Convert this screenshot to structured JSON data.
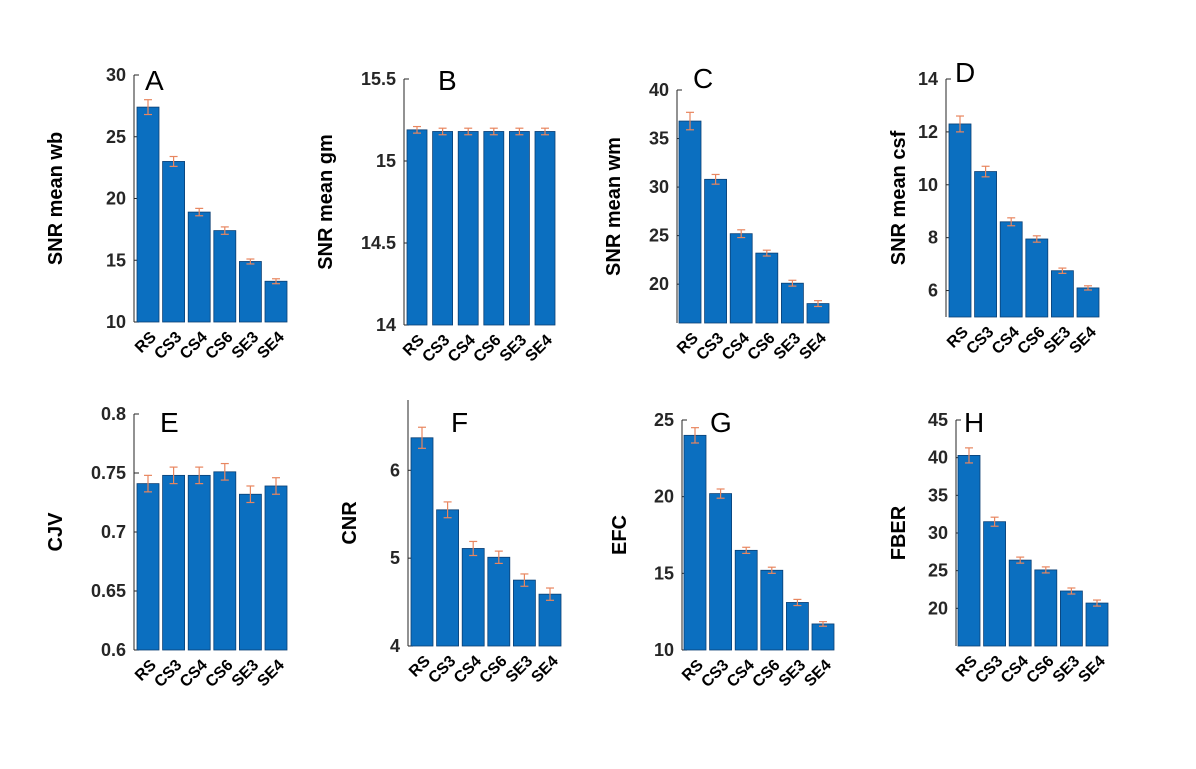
{
  "colors": {
    "bar": "#0b6fc0",
    "bar_edge": "#0a3f74",
    "error": "#e8865f",
    "axis": "#262626"
  },
  "chart_data": [
    {
      "type": "bar",
      "panel_label": "A",
      "ylabel": "SNR mean wb",
      "ylim": [
        10,
        30
      ],
      "yticks": [
        "10",
        "15",
        "20",
        "25",
        "30"
      ],
      "categories": [
        "RS",
        "CS3",
        "CS4",
        "CS6",
        "SE3",
        "SE4"
      ],
      "values": [
        27.4,
        23.0,
        18.9,
        17.4,
        14.9,
        13.3
      ],
      "errors": [
        0.6,
        0.4,
        0.3,
        0.3,
        0.2,
        0.2
      ]
    },
    {
      "type": "bar",
      "panel_label": "B",
      "ylabel": "SNR mean gm",
      "ylim": [
        14,
        15.5
      ],
      "yticks": [
        "14",
        "14.5",
        "15",
        "15.5"
      ],
      "categories": [
        "RS",
        "CS3",
        "CS4",
        "CS6",
        "SE3",
        "SE4"
      ],
      "values": [
        15.19,
        15.18,
        15.18,
        15.18,
        15.18,
        15.18
      ],
      "errors": [
        0.02,
        0.02,
        0.02,
        0.02,
        0.02,
        0.02
      ]
    },
    {
      "type": "bar",
      "panel_label": "C",
      "ylabel": "SNR mean wm",
      "ylim": [
        16,
        40
      ],
      "yticks": [
        "20",
        "25",
        "30",
        "35",
        "40"
      ],
      "categories": [
        "RS",
        "CS3",
        "CS4",
        "CS6",
        "SE3",
        "SE4"
      ],
      "values": [
        36.8,
        30.8,
        25.2,
        23.2,
        20.1,
        18.0
      ],
      "errors": [
        0.9,
        0.5,
        0.4,
        0.3,
        0.3,
        0.3
      ]
    },
    {
      "type": "bar",
      "panel_label": "D",
      "ylabel": "SNR mean csf",
      "ylim": [
        5,
        14
      ],
      "yticks": [
        "6",
        "8",
        "10",
        "12",
        "14"
      ],
      "categories": [
        "RS",
        "CS3",
        "CS4",
        "CS6",
        "SE3",
        "SE4"
      ],
      "values": [
        12.3,
        10.5,
        8.6,
        7.95,
        6.75,
        6.1
      ],
      "errors": [
        0.3,
        0.2,
        0.15,
        0.12,
        0.1,
        0.08
      ]
    },
    {
      "type": "bar",
      "panel_label": "E",
      "ylabel": "CJV",
      "ylim": [
        0.6,
        0.8
      ],
      "yticks": [
        "0.6",
        "0.65",
        "0.7",
        "0.75",
        "0.8"
      ],
      "categories": [
        "RS",
        "CS3",
        "CS4",
        "CS6",
        "SE3",
        "SE4"
      ],
      "values": [
        0.741,
        0.748,
        0.748,
        0.751,
        0.732,
        0.739
      ],
      "errors": [
        0.007,
        0.007,
        0.007,
        0.007,
        0.007,
        0.007
      ]
    },
    {
      "type": "bar",
      "panel_label": "F",
      "ylabel": "CNR",
      "ylim": [
        4,
        6.8
      ],
      "yticks": [
        "4",
        "5",
        "6"
      ],
      "categories": [
        "RS",
        "CS3",
        "CS4",
        "CS6",
        "SE3",
        "SE4"
      ],
      "values": [
        6.37,
        5.55,
        5.11,
        5.01,
        4.75,
        4.59
      ],
      "errors": [
        0.12,
        0.09,
        0.08,
        0.07,
        0.07,
        0.07
      ]
    },
    {
      "type": "bar",
      "panel_label": "G",
      "ylabel": "EFC",
      "ylim": [
        10,
        25
      ],
      "yticks": [
        "10",
        "15",
        "20",
        "25"
      ],
      "categories": [
        "RS",
        "CS3",
        "CS4",
        "CS6",
        "SE3",
        "SE4"
      ],
      "values": [
        24.0,
        20.2,
        16.5,
        15.2,
        13.1,
        11.7
      ],
      "errors": [
        0.5,
        0.3,
        0.2,
        0.2,
        0.2,
        0.15
      ]
    },
    {
      "type": "bar",
      "panel_label": "H",
      "ylabel": "FBER",
      "ylim": [
        15,
        45
      ],
      "yticks": [
        "20",
        "25",
        "30",
        "35",
        "40",
        "45"
      ],
      "categories": [
        "RS",
        "CS3",
        "CS4",
        "CS6",
        "SE3",
        "SE4"
      ],
      "values": [
        40.3,
        31.5,
        26.4,
        25.1,
        22.3,
        20.7
      ],
      "errors": [
        1.0,
        0.6,
        0.4,
        0.4,
        0.4,
        0.4
      ]
    }
  ]
}
